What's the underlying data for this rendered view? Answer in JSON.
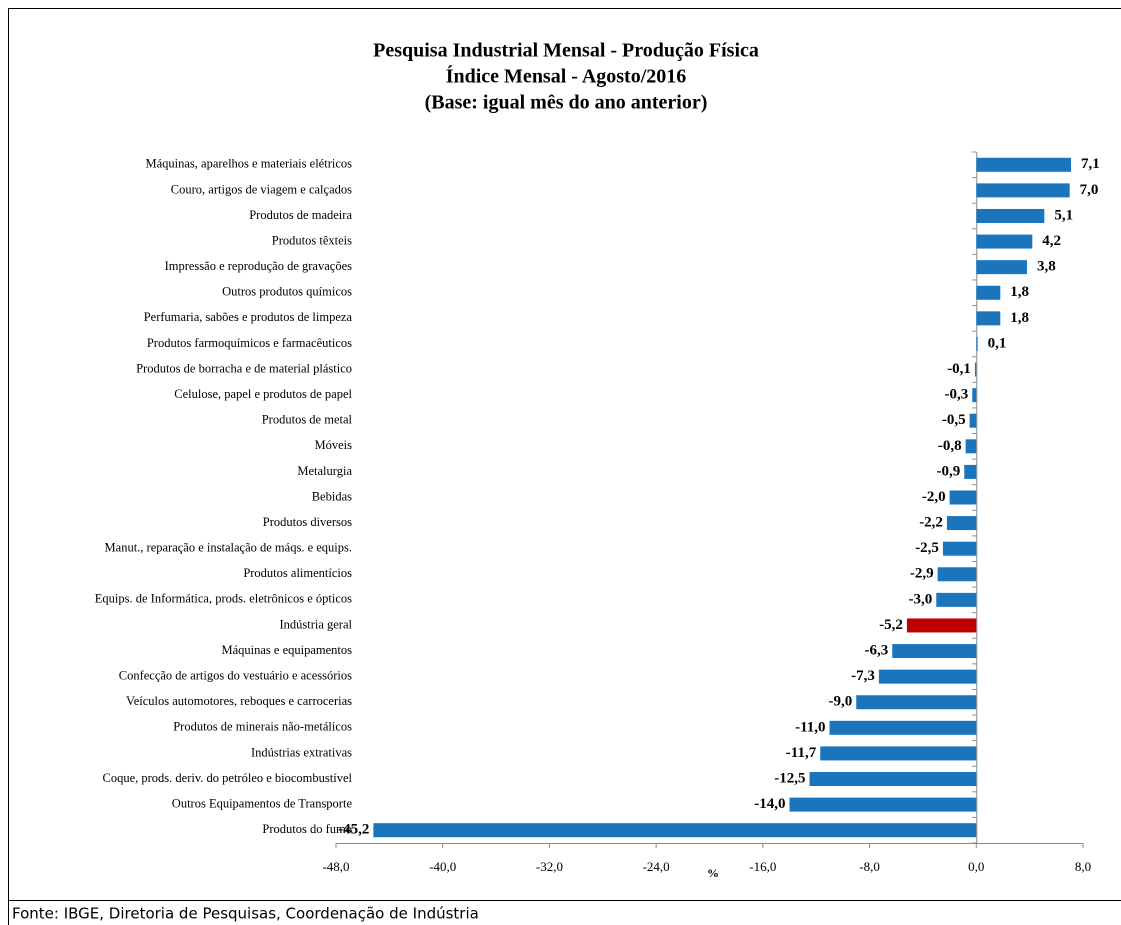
{
  "chart_data": {
    "type": "bar",
    "orientation": "horizontal",
    "title_lines": [
      "Pesquisa Industrial Mensal - Produção Física",
      "Índice Mensal - Agosto/2016",
      "(Base: igual mês do ano anterior)"
    ],
    "x_label": "%",
    "source": "Fonte: IBGE, Diretoria de Pesquisas, Coordenação de Indústria",
    "categories": [
      "Máquinas, aparelhos e materiais elétricos",
      "Couro, artigos de viagem e calçados",
      "Produtos de madeira",
      "Produtos têxteis",
      "Impressão e reprodução de gravações",
      "Outros produtos químicos",
      "Perfumaria, sabões e produtos de limpeza",
      "Produtos farmoquímicos e farmacêuticos",
      "Produtos de borracha e de material plástico",
      "Celulose, papel e produtos de papel",
      "Produtos de metal",
      "Móveis",
      "Metalurgia",
      "Bebidas",
      "Produtos diversos",
      "Manut., reparação e instalação de máqs. e equips.",
      "Produtos alimentícios",
      "Equips. de Informática, prods. eletrônicos e ópticos",
      "Indústria geral",
      "Máquinas e equipamentos",
      "Confecção de artigos do vestuário e acessórios",
      "Veículos automotores, reboques e carrocerias",
      "Produtos de minerais não-metálicos",
      "Indústrias extrativas",
      "Coque, prods. deriv. do petróleo e biocombustível",
      "Outros Equipamentos de Transporte",
      "Produtos do fumo"
    ],
    "values": [
      7.1,
      7.0,
      5.1,
      4.2,
      3.8,
      1.8,
      1.8,
      0.1,
      -0.1,
      -0.3,
      -0.5,
      -0.8,
      -0.9,
      -2.0,
      -2.2,
      -2.5,
      -2.9,
      -3.0,
      -5.2,
      -6.3,
      -7.3,
      -9.0,
      -11.0,
      -11.7,
      -12.5,
      -14.0,
      -45.2
    ],
    "value_labels": [
      "7,1",
      "7,0",
      "5,1",
      "4,2",
      "3,8",
      "1,8",
      "1,8",
      "0,1",
      "-0,1",
      "-0,3",
      "-0,5",
      "-0,8",
      "-0,9",
      "-2,0",
      "-2,2",
      "-2,5",
      "-2,9",
      "-3,0",
      "-5,2",
      "-6,3",
      "-7,3",
      "-9,0",
      "-11,0",
      "-11,7",
      "-12,5",
      "-14,0",
      "-45,2"
    ],
    "colors": [
      "#1b75bc",
      "#1b75bc",
      "#1b75bc",
      "#1b75bc",
      "#1b75bc",
      "#1b75bc",
      "#1b75bc",
      "#1b75bc",
      "#1b75bc",
      "#1b75bc",
      "#1b75bc",
      "#1b75bc",
      "#1b75bc",
      "#1b75bc",
      "#1b75bc",
      "#1b75bc",
      "#1b75bc",
      "#1b75bc",
      "#c00000",
      "#1b75bc",
      "#1b75bc",
      "#1b75bc",
      "#1b75bc",
      "#1b75bc",
      "#1b75bc",
      "#1b75bc",
      "#1b75bc"
    ],
    "xlim": [
      -48,
      8
    ],
    "xticks": [
      {
        "value": -48,
        "label": "-48,0"
      },
      {
        "value": -40,
        "label": "-40,0"
      },
      {
        "value": -32,
        "label": "-32,0"
      },
      {
        "value": -24,
        "label": "-24,0"
      },
      {
        "value": -16,
        "label": "-16,0"
      },
      {
        "value": -8,
        "label": "-8,0"
      },
      {
        "value": 0,
        "label": "0,0"
      },
      {
        "value": 8,
        "label": "8,0"
      }
    ],
    "grid": false
  }
}
